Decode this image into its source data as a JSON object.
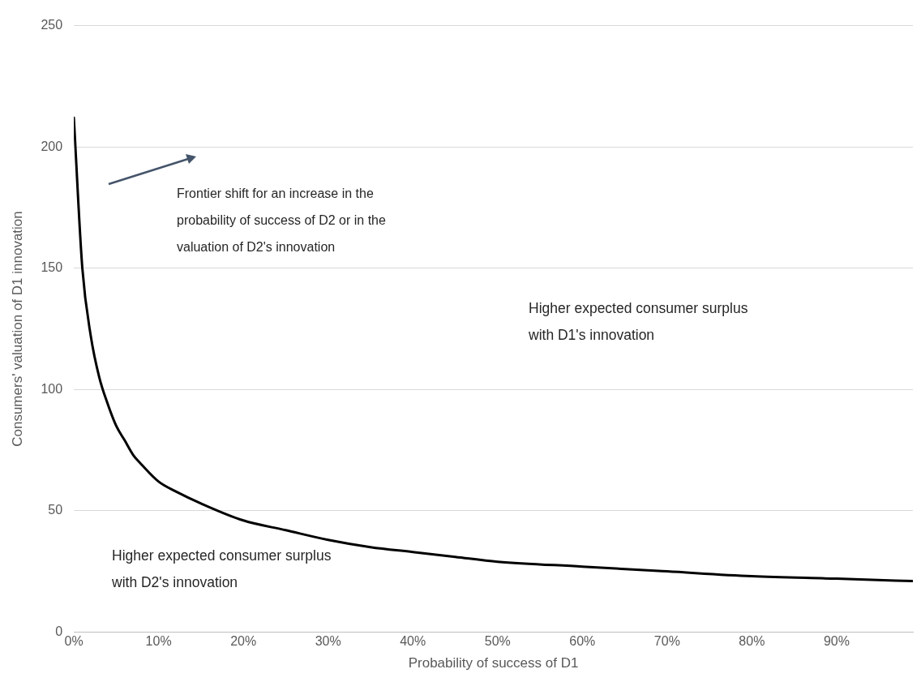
{
  "chart_data": {
    "type": "line",
    "xlabel": "Probability of success of D1",
    "ylabel": "Consumers' valuation of D1 innovation",
    "x": [
      0,
      1,
      2,
      3,
      4,
      5,
      6,
      7,
      8,
      10,
      12,
      15,
      20,
      25,
      30,
      35,
      40,
      45,
      50,
      60,
      70,
      80,
      90,
      99
    ],
    "series": [
      {
        "color": "#000000",
        "values": [
          212,
          150,
          122,
          105,
          94,
          85,
          79,
          73,
          69,
          62,
          58,
          53,
          46,
          42,
          38,
          35,
          33,
          31,
          29,
          27,
          25,
          23,
          22,
          21
        ]
      }
    ],
    "xlim": [
      0,
      99
    ],
    "xticks": [
      {
        "value": 0,
        "label": "0%"
      },
      {
        "value": 10,
        "label": "10%"
      },
      {
        "value": 20,
        "label": "20%"
      },
      {
        "value": 30,
        "label": "30%"
      },
      {
        "value": 40,
        "label": "40%"
      },
      {
        "value": 50,
        "label": "50%"
      },
      {
        "value": 60,
        "label": "60%"
      },
      {
        "value": 70,
        "label": "70%"
      },
      {
        "value": 80,
        "label": "80%"
      },
      {
        "value": 90,
        "label": "90%"
      }
    ],
    "ylim": [
      0,
      250
    ],
    "yticks": [
      0,
      50,
      100,
      150,
      200,
      250
    ],
    "grid": "y",
    "legend": false,
    "marker": "none",
    "line_style": "solid",
    "annotations": [
      "Frontier shift for an increase in the probability of success of D2 or in the valuation of D2's innovation",
      "Higher expected consumer surplus with D1's innovation",
      "Higher expected consumer surplus with D2's innovation"
    ]
  }
}
